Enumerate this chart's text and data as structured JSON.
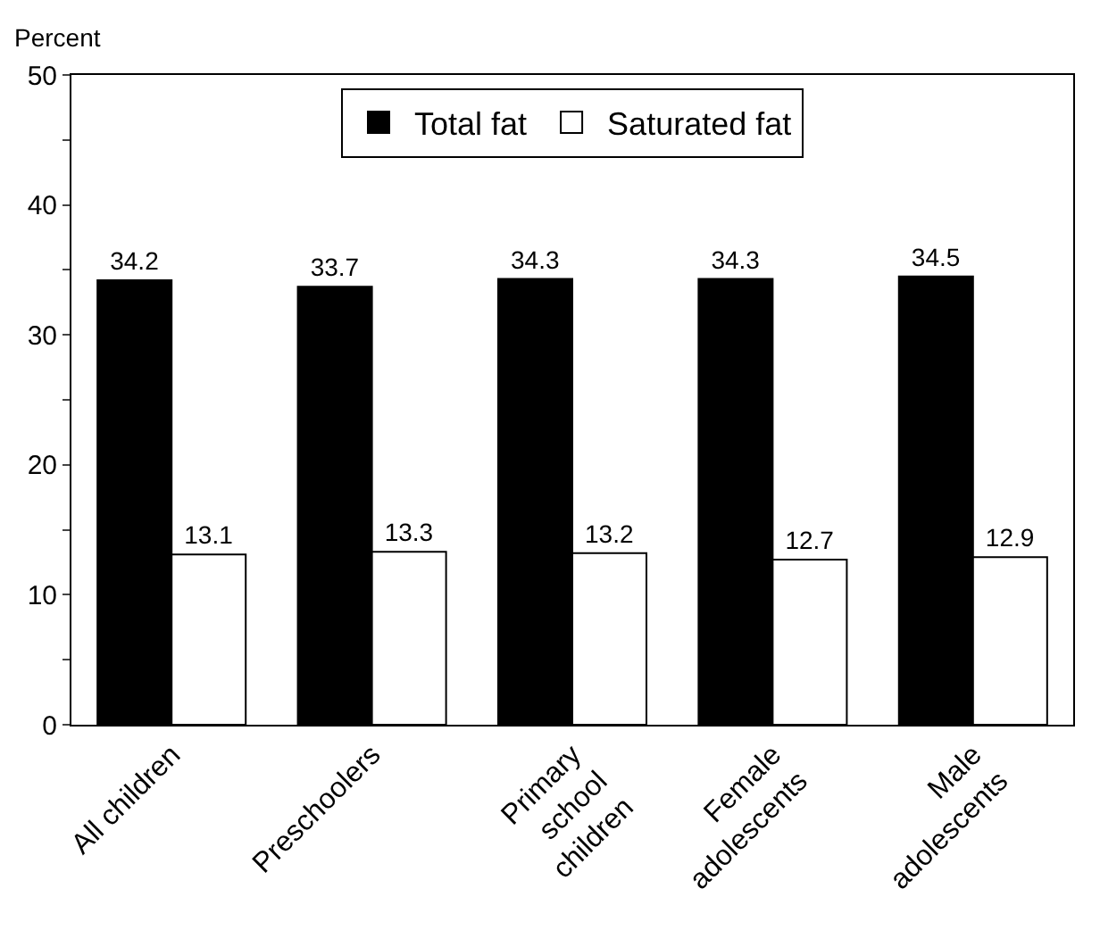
{
  "chart_data": {
    "type": "bar",
    "ylabel": "Percent",
    "categories": [
      "All children",
      "Preschoolers",
      "Primary\nschool\nchildren",
      "Female\nadolescents",
      "Male\nadolescents"
    ],
    "series": [
      {
        "name": "Total fat",
        "color": "#000000",
        "values": [
          34.2,
          33.7,
          34.3,
          34.3,
          34.5
        ]
      },
      {
        "name": "Saturated fat",
        "color": "#ffffff",
        "values": [
          13.1,
          13.3,
          13.2,
          12.7,
          12.9
        ]
      }
    ],
    "ylim": [
      0,
      50
    ],
    "yticks": [
      0,
      {
        "value": 5,
        "label": null
      },
      10,
      {
        "value": 15,
        "label": null
      },
      20,
      {
        "value": 25,
        "label": null
      },
      30,
      {
        "value": 35,
        "label": null
      },
      40,
      {
        "value": 45,
        "label": null
      },
      50
    ],
    "data_labels": true,
    "legend": "top",
    "grid": false
  }
}
